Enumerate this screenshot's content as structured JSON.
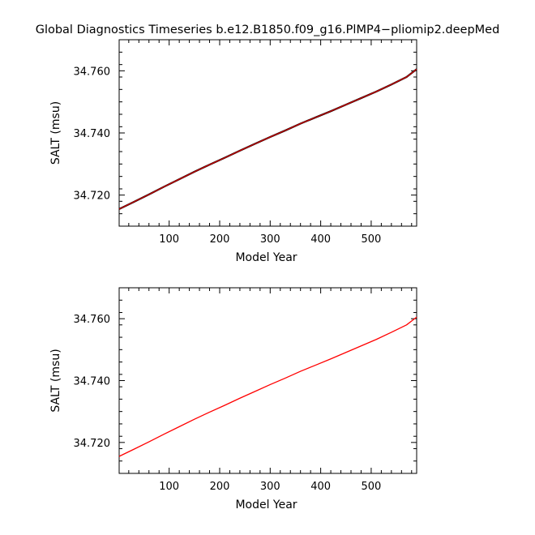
{
  "figure": {
    "title": "Global Diagnostics Timeseries b.e12.B1850.f09_g16.PlMP4−pliomip2.deepMed"
  },
  "chart_data": [
    {
      "type": "line",
      "title": "",
      "xlabel": "Model Year",
      "ylabel": "SALT (msu)",
      "xlim": [
        1,
        590
      ],
      "ylim": [
        34.71,
        34.77
      ],
      "x_ticks": [
        100,
        200,
        300,
        400,
        500
      ],
      "x_tick_labels": [
        "100",
        "200",
        "300",
        "400",
        "500"
      ],
      "y_ticks": [
        34.72,
        34.74,
        34.76
      ],
      "y_tick_labels": [
        "34.720",
        "34.740",
        "34.760"
      ],
      "grid": false,
      "series": [
        {
          "color": "#000000",
          "x": [
            1,
            30,
            60,
            90,
            120,
            150,
            180,
            210,
            240,
            270,
            300,
            330,
            360,
            390,
            420,
            450,
            480,
            510,
            540,
            570,
            590
          ],
          "values": [
            34.7155,
            34.7178,
            34.7202,
            34.7227,
            34.7251,
            34.7275,
            34.7298,
            34.732,
            34.7343,
            34.7365,
            34.7387,
            34.7408,
            34.743,
            34.745,
            34.747,
            34.7491,
            34.7512,
            34.7533,
            34.7556,
            34.758,
            34.7605
          ]
        },
        {
          "color": "#cc0000",
          "x": [
            1,
            30,
            60,
            90,
            120,
            150,
            180,
            210,
            240,
            270,
            300,
            330,
            360,
            390,
            420,
            450,
            480,
            510,
            540,
            570,
            590
          ],
          "values": [
            34.7155,
            34.7178,
            34.7202,
            34.7227,
            34.7251,
            34.7275,
            34.7298,
            34.732,
            34.7343,
            34.7365,
            34.7387,
            34.7408,
            34.743,
            34.745,
            34.747,
            34.7491,
            34.7512,
            34.7533,
            34.7556,
            34.758,
            34.7605
          ]
        }
      ]
    },
    {
      "type": "line",
      "title": "",
      "xlabel": "Model Year",
      "ylabel": "SALT (msu)",
      "xlim": [
        1,
        590
      ],
      "ylim": [
        34.71,
        34.77
      ],
      "x_ticks": [
        100,
        200,
        300,
        400,
        500
      ],
      "x_tick_labels": [
        "100",
        "200",
        "300",
        "400",
        "500"
      ],
      "y_ticks": [
        34.72,
        34.74,
        34.76
      ],
      "y_tick_labels": [
        "34.720",
        "34.740",
        "34.760"
      ],
      "grid": false,
      "series": [
        {
          "color": "#ff0000",
          "x": [
            1,
            30,
            60,
            90,
            120,
            150,
            180,
            210,
            240,
            270,
            300,
            330,
            360,
            390,
            420,
            450,
            480,
            510,
            540,
            570,
            590
          ],
          "values": [
            34.7155,
            34.7178,
            34.7202,
            34.7227,
            34.7251,
            34.7275,
            34.7298,
            34.732,
            34.7343,
            34.7365,
            34.7387,
            34.7408,
            34.743,
            34.745,
            34.747,
            34.7491,
            34.7512,
            34.7533,
            34.7556,
            34.758,
            34.7605
          ]
        }
      ]
    }
  ]
}
